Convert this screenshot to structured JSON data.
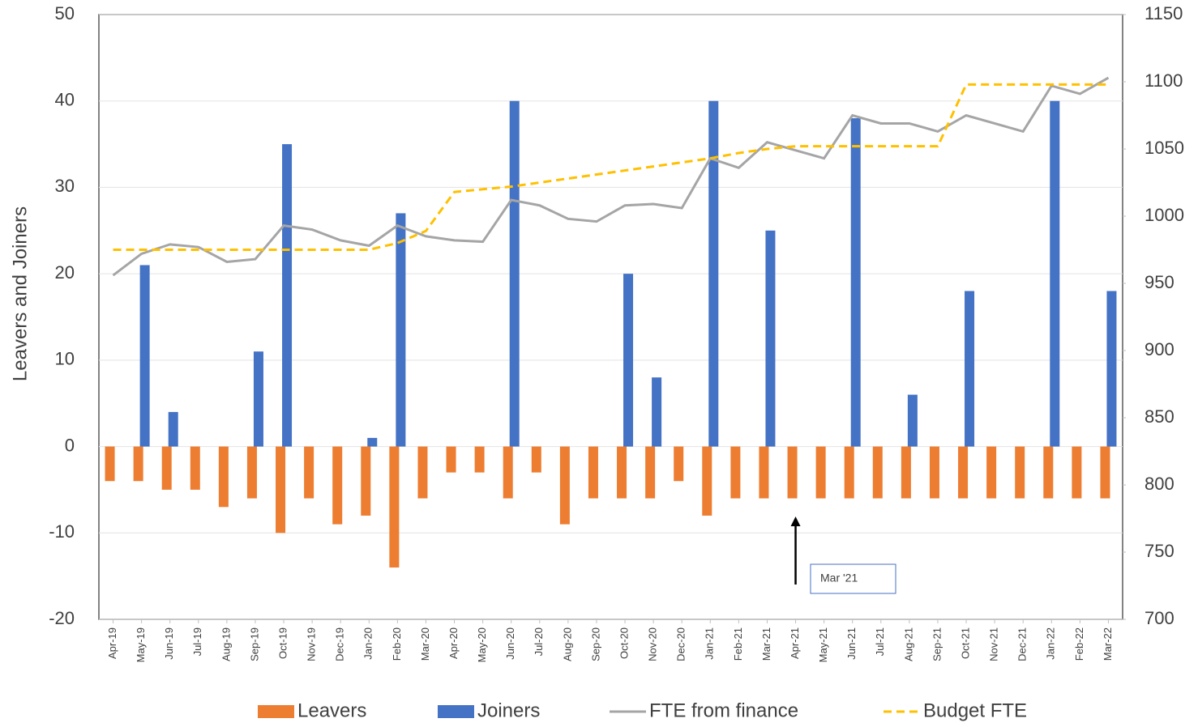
{
  "chart_data": {
    "type": "bar",
    "y_label": "Leavers and Joiners",
    "categories": [
      "Apr-19",
      "May-19",
      "Jun-19",
      "Jul-19",
      "Aug-19",
      "Sep-19",
      "Oct-19",
      "Nov-19",
      "Dec-19",
      "Jan-20",
      "Feb-20",
      "Mar-20",
      "Apr-20",
      "May-20",
      "Jun-20",
      "Jul-20",
      "Aug-20",
      "Sep-20",
      "Oct-20",
      "Nov-20",
      "Dec-20",
      "Jan-21",
      "Feb-21",
      "Mar-21",
      "Apr-21",
      "May-21",
      "Jun-21",
      "Jul-21",
      "Aug-21",
      "Sep-21",
      "Oct-21",
      "Nov-21",
      "Dec-21",
      "Jan-22",
      "Feb-22",
      "Mar-22"
    ],
    "series": [
      {
        "name": "Leavers",
        "type": "bar",
        "color": "#ed7d31",
        "values": [
          -4,
          -4,
          -5,
          -5,
          -7,
          -6,
          -10,
          -6,
          -9,
          -8,
          -14,
          -6,
          -3,
          -3,
          -6,
          -3,
          -9,
          -6,
          -6,
          -6,
          -4,
          -8,
          -6,
          -6,
          -6,
          -6,
          -6,
          -6,
          -6,
          -6,
          -6,
          -6,
          -6,
          -6,
          -6,
          -6
        ]
      },
      {
        "name": "Joiners",
        "type": "bar",
        "color": "#4472c4",
        "values": [
          0,
          21,
          4,
          0,
          0,
          11,
          35,
          0,
          0,
          1,
          27,
          0,
          0,
          0,
          40,
          0,
          0,
          0,
          20,
          8,
          0,
          40,
          0,
          25,
          0,
          0,
          38,
          0,
          6,
          0,
          18,
          0,
          0,
          40,
          0,
          18
        ]
      },
      {
        "name": "FTE from finance",
        "type": "line",
        "axis": "y2",
        "color": "#a5a5a5",
        "values": [
          956,
          972,
          979,
          977,
          966,
          968,
          993,
          990,
          982,
          978,
          993,
          985,
          982,
          981,
          1012,
          1008,
          998,
          996,
          1008,
          1009,
          1006,
          1043,
          1036,
          1055,
          1049,
          1043,
          1075,
          1069,
          1069,
          1063,
          1075,
          1069,
          1063,
          1097,
          1091,
          1103
        ]
      },
      {
        "name": "Budget FTE",
        "type": "line",
        "dashed": true,
        "axis": "y2",
        "color": "#ffc000",
        "values": [
          975,
          975,
          975,
          975,
          975,
          975,
          975,
          975,
          975,
          975,
          980,
          989,
          1018,
          1020,
          1022,
          1025,
          1028,
          1031,
          1034,
          1037,
          1040,
          1043,
          1047,
          1050,
          1052,
          1052,
          1052,
          1052,
          1052,
          1052,
          1098,
          1098,
          1098,
          1098,
          1098,
          1098
        ]
      }
    ],
    "ylim": [
      -20,
      50
    ],
    "yticks": [
      -20,
      -10,
      0,
      10,
      20,
      30,
      40,
      50
    ],
    "y2lim": [
      700,
      1150
    ],
    "y2ticks": [
      700,
      750,
      800,
      850,
      900,
      950,
      1000,
      1050,
      1100,
      1150
    ],
    "grid": true,
    "legend": "bottom",
    "annotations": [
      {
        "text": "Mar '21",
        "category": 24
      }
    ]
  }
}
